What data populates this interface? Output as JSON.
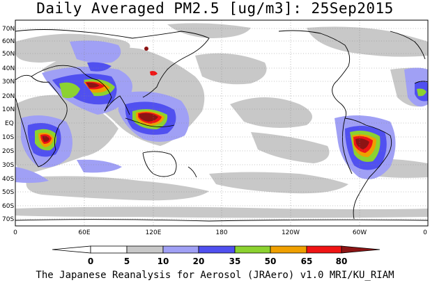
{
  "title": "Daily Averaged PM2.5 [ug/m3]: 25Sep2015",
  "credit": "The Japanese Reanalysis for Aerosol (JRAero) v1.0 MRI/KU_RIAM",
  "map": {
    "lat_labels": [
      "70N",
      "60N",
      "50N",
      "40N",
      "30N",
      "20N",
      "10N",
      "EQ",
      "10S",
      "20S",
      "30S",
      "40S",
      "50S",
      "60S",
      "70S"
    ],
    "lon_labels": [
      "0",
      "60E",
      "120E",
      "180",
      "120W",
      "60W",
      "0"
    ]
  },
  "colorbar": {
    "levels": [
      "0",
      "5",
      "10",
      "20",
      "35",
      "50",
      "65",
      "80"
    ],
    "colors": [
      "#ffffff",
      "#c8c8c8",
      "#a0a0f5",
      "#5050f0",
      "#8cd230",
      "#f0a000",
      "#f01414",
      "#8c1414"
    ]
  }
}
